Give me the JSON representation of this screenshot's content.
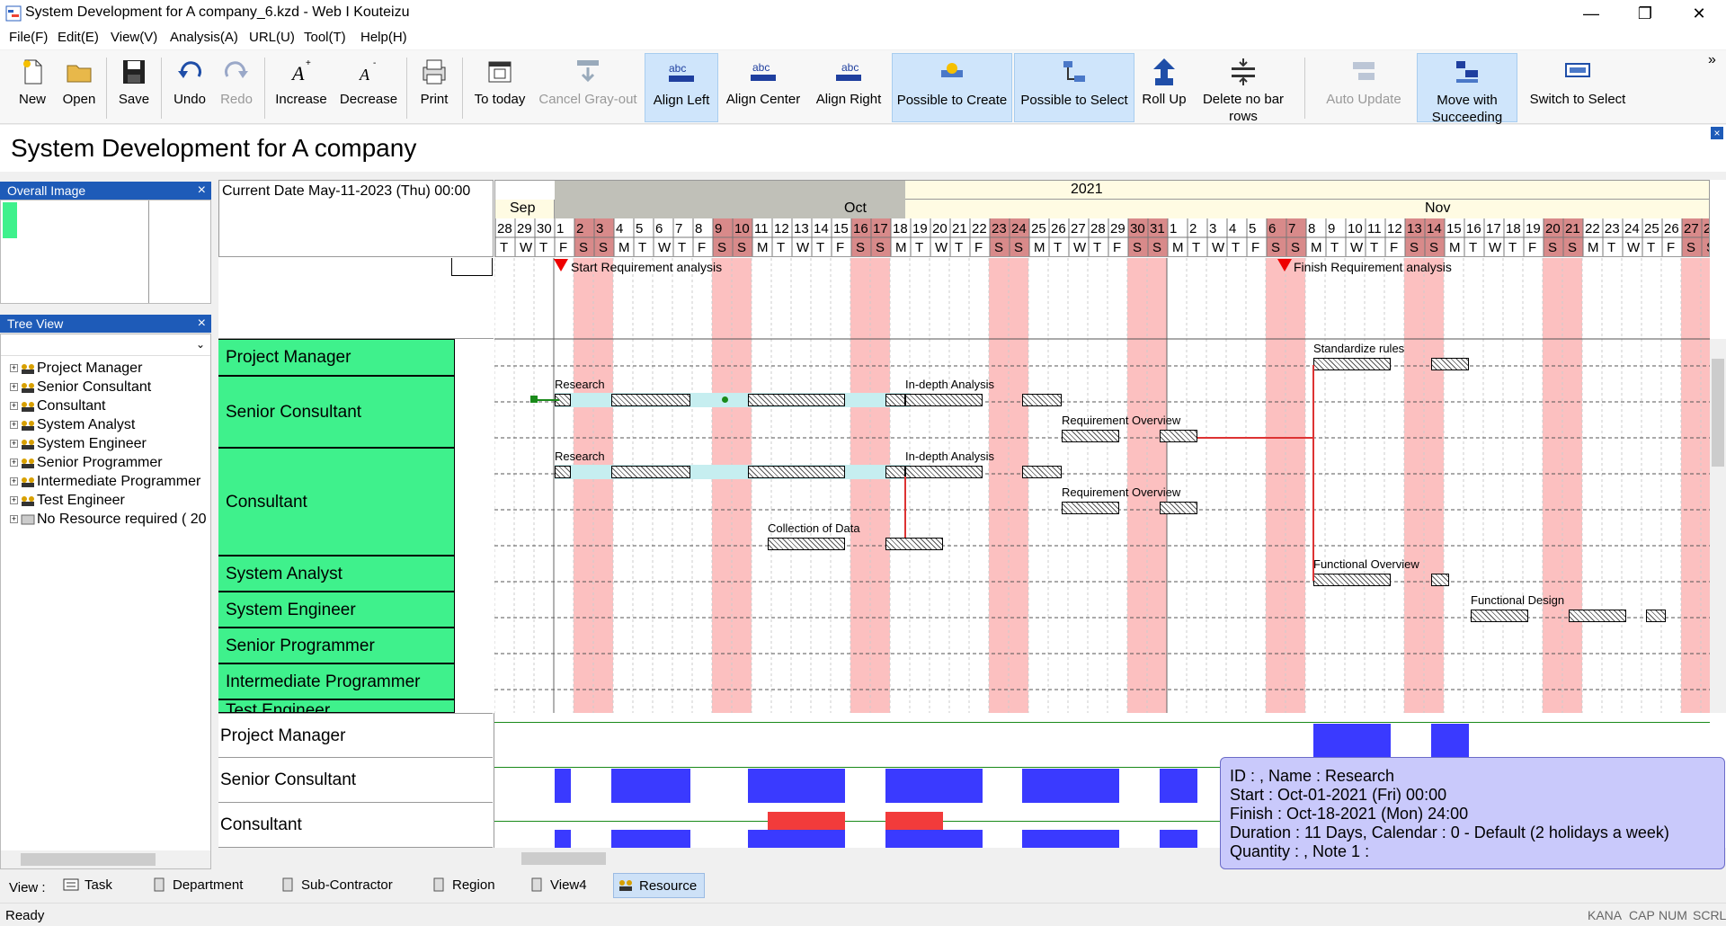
{
  "window": {
    "title": "System Development for A company_6.kzd - Web I Kouteizu",
    "min": "—",
    "max": "❐",
    "close": "✕"
  },
  "menu": [
    "File(F)",
    "Edit(E)",
    "View(V)",
    "Analysis(A)",
    "URL(U)",
    "Tool(T)",
    "Help(H)"
  ],
  "toolbar": {
    "new": "New",
    "open": "Open",
    "save": "Save",
    "undo": "Undo",
    "redo": "Redo",
    "increase": "Increase",
    "decrease": "Decrease",
    "print": "Print",
    "to_today": "To today",
    "cancel_grayout": "Cancel Gray-out",
    "align_left": "Align Left",
    "align_center": "Align Center",
    "align_right": "Align Right",
    "possible_create": "Possible to Create",
    "possible_select": "Possible to Select",
    "roll_up": "Roll Up",
    "delete_no_bar_1": "Delete no bar",
    "delete_no_bar_2": "rows",
    "auto_update": "Auto Update",
    "move_with_1": "Move with",
    "move_with_2": "Succeeding Bars",
    "switch_select": "Switch to Select",
    "align_icon_text": "abc",
    "overflow": "»"
  },
  "document_title": "System Development for A company",
  "panels": {
    "overview_title": "Overall Image",
    "tree_title": "Tree View",
    "close": "×",
    "tree_items": [
      "Project Manager",
      "Senior Consultant",
      "Consultant",
      "System Analyst",
      "System Engineer",
      "Senior Programmer",
      "Intermediate Programmer",
      "Test Engineer",
      "No Resource required ( 20"
    ]
  },
  "gantt": {
    "current_date": "Current Date May-11-2023 (Thu) 00:00",
    "year": "2021",
    "months": [
      "Sep",
      "Oct",
      "Nov"
    ],
    "milestones": [
      "Start Requirement analysis",
      "Finish Requirement analysis"
    ],
    "resources": [
      "Project Manager",
      "Senior Consultant",
      "Consultant",
      "System Analyst",
      "System Engineer",
      "Senior Programmer",
      "Intermediate Programmer",
      "Test Engineer"
    ],
    "bars": {
      "research": "Research",
      "in_depth": "In-depth Analysis",
      "req_overview": "Requirement Overview",
      "collection": "Collection of Data",
      "standardize": "Standardize rules",
      "functional_overview": "Functional Overview",
      "functional_design": "Functional Design"
    },
    "load_resources": [
      "Project Manager",
      "Senior Consultant",
      "Consultant"
    ]
  },
  "tooltip": {
    "line1": "ID : , Name : Research",
    "line2": "Start : Oct-01-2021 (Fri) 00:00",
    "line3": "Finish : Oct-18-2021 (Mon) 24:00",
    "line4": "Duration : 11 Days, Calendar : 0 - Default (2 holidays a week)",
    "line5": "Quantity : , Note 1 :"
  },
  "views": {
    "label": "View :",
    "tabs": [
      "Task",
      "Department",
      "Sub-Contractor",
      "Region",
      "View4",
      "Resource"
    ]
  },
  "status": {
    "text": "Ready",
    "kana": "KANA",
    "cap": "CAP",
    "num": "NUM",
    "scrl": "SCRL"
  }
}
